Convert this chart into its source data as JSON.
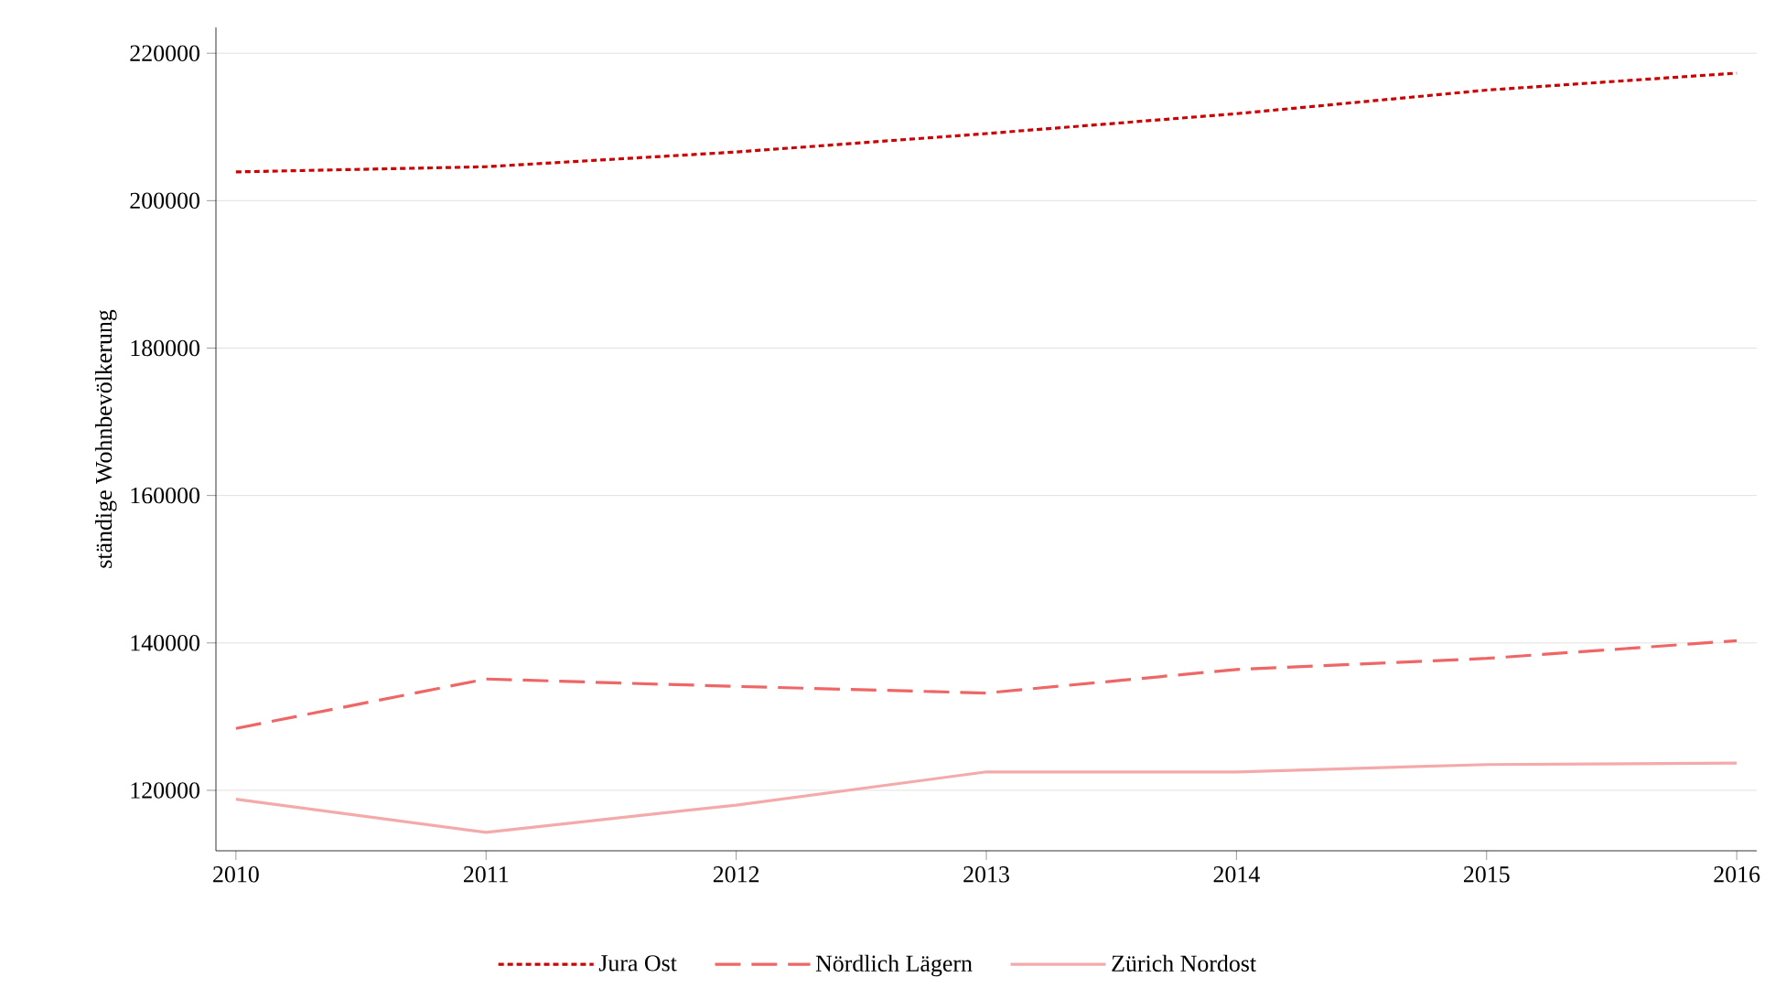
{
  "chart_data": {
    "type": "line",
    "ylabel": "ständige Wohnbevölkerung",
    "x": [
      2010,
      2011,
      2012,
      2013,
      2014,
      2015,
      2016
    ],
    "series": [
      {
        "name": "Jura Ost",
        "color": "#cc0000",
        "line_style": "dotted",
        "values": [
          203900,
          204600,
          206600,
          209100,
          211800,
          215000,
          217300
        ]
      },
      {
        "name": "Nördlich Lägern",
        "color": "#ee6666",
        "line_style": "dashed",
        "values": [
          128400,
          135100,
          134100,
          133200,
          136400,
          137900,
          140300
        ]
      },
      {
        "name": "Zürich Nordost",
        "color": "#f4aaaa",
        "line_style": "solid",
        "values": [
          118800,
          114300,
          118000,
          122500,
          122500,
          123500,
          123700
        ]
      }
    ],
    "xlim": [
      2009.92,
      2016.08
    ],
    "xticks": [
      2010,
      2011,
      2012,
      2013,
      2014,
      2015,
      2016
    ],
    "ylim": [
      111800,
      223500
    ],
    "yticks": [
      120000,
      140000,
      160000,
      180000,
      200000,
      220000
    ],
    "grid": "y",
    "legend": "bottom",
    "marker": "none"
  }
}
